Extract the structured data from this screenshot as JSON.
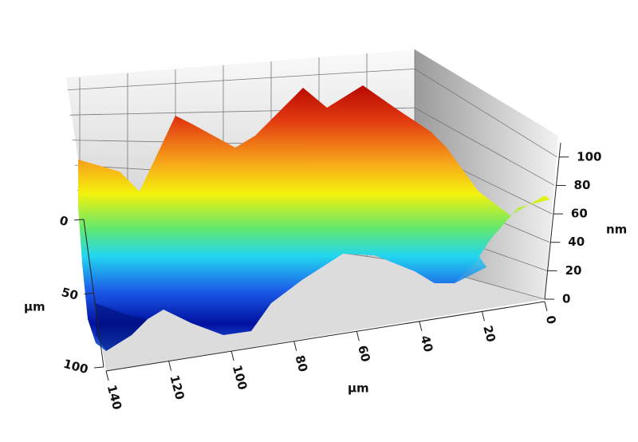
{
  "chart_data": {
    "type": "surface",
    "xlabel": "μm",
    "ylabel": "μm",
    "zlabel": "nm",
    "xlim": [
      0,
      140
    ],
    "xticks": [
      0,
      20,
      40,
      60,
      80,
      100,
      120,
      140
    ],
    "ylim": [
      0,
      100
    ],
    "yticks": [
      0,
      50,
      100
    ],
    "zlim": [
      0,
      110
    ],
    "zticks": [
      0,
      20,
      40,
      60,
      80,
      100
    ]
  }
}
